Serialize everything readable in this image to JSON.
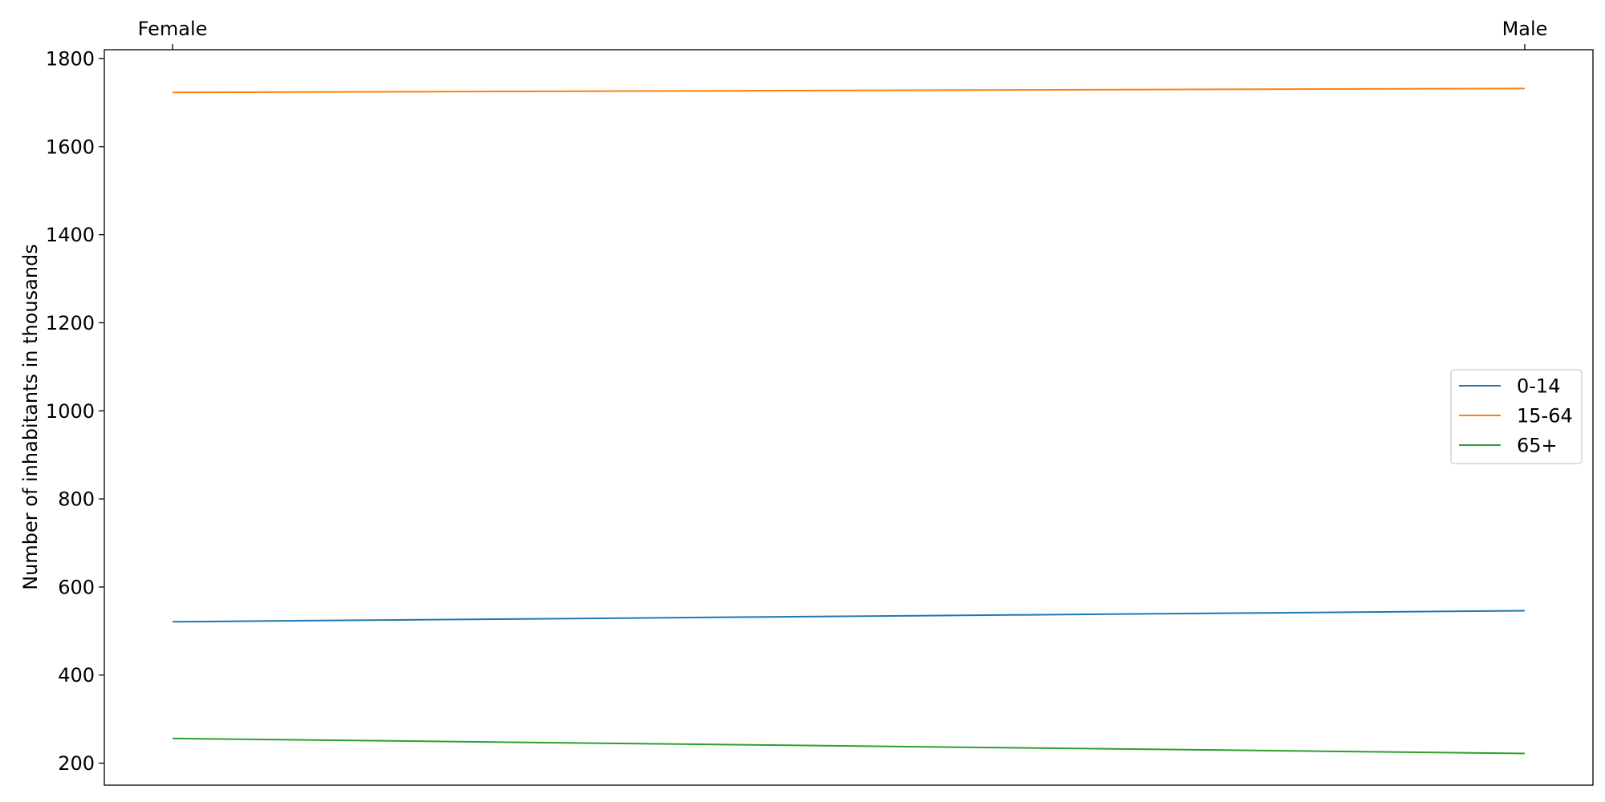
{
  "chart_data": {
    "type": "line",
    "categories": [
      "Female",
      "Male"
    ],
    "x_axis_position": "top",
    "ylabel": "Number of inhabitants in thousands",
    "ylim": [
      150,
      1820
    ],
    "yticks": [
      200,
      400,
      600,
      800,
      1000,
      1200,
      1400,
      1600,
      1800
    ],
    "grid": false,
    "legend_position": "center-right",
    "series": [
      {
        "name": "0-14",
        "color": "#1f77b4",
        "values": [
          521,
          546
        ]
      },
      {
        "name": "15-64",
        "color": "#ff7f0e",
        "values": [
          1723,
          1732
        ]
      },
      {
        "name": "65+",
        "color": "#2ca02c",
        "values": [
          256,
          222
        ]
      }
    ]
  }
}
